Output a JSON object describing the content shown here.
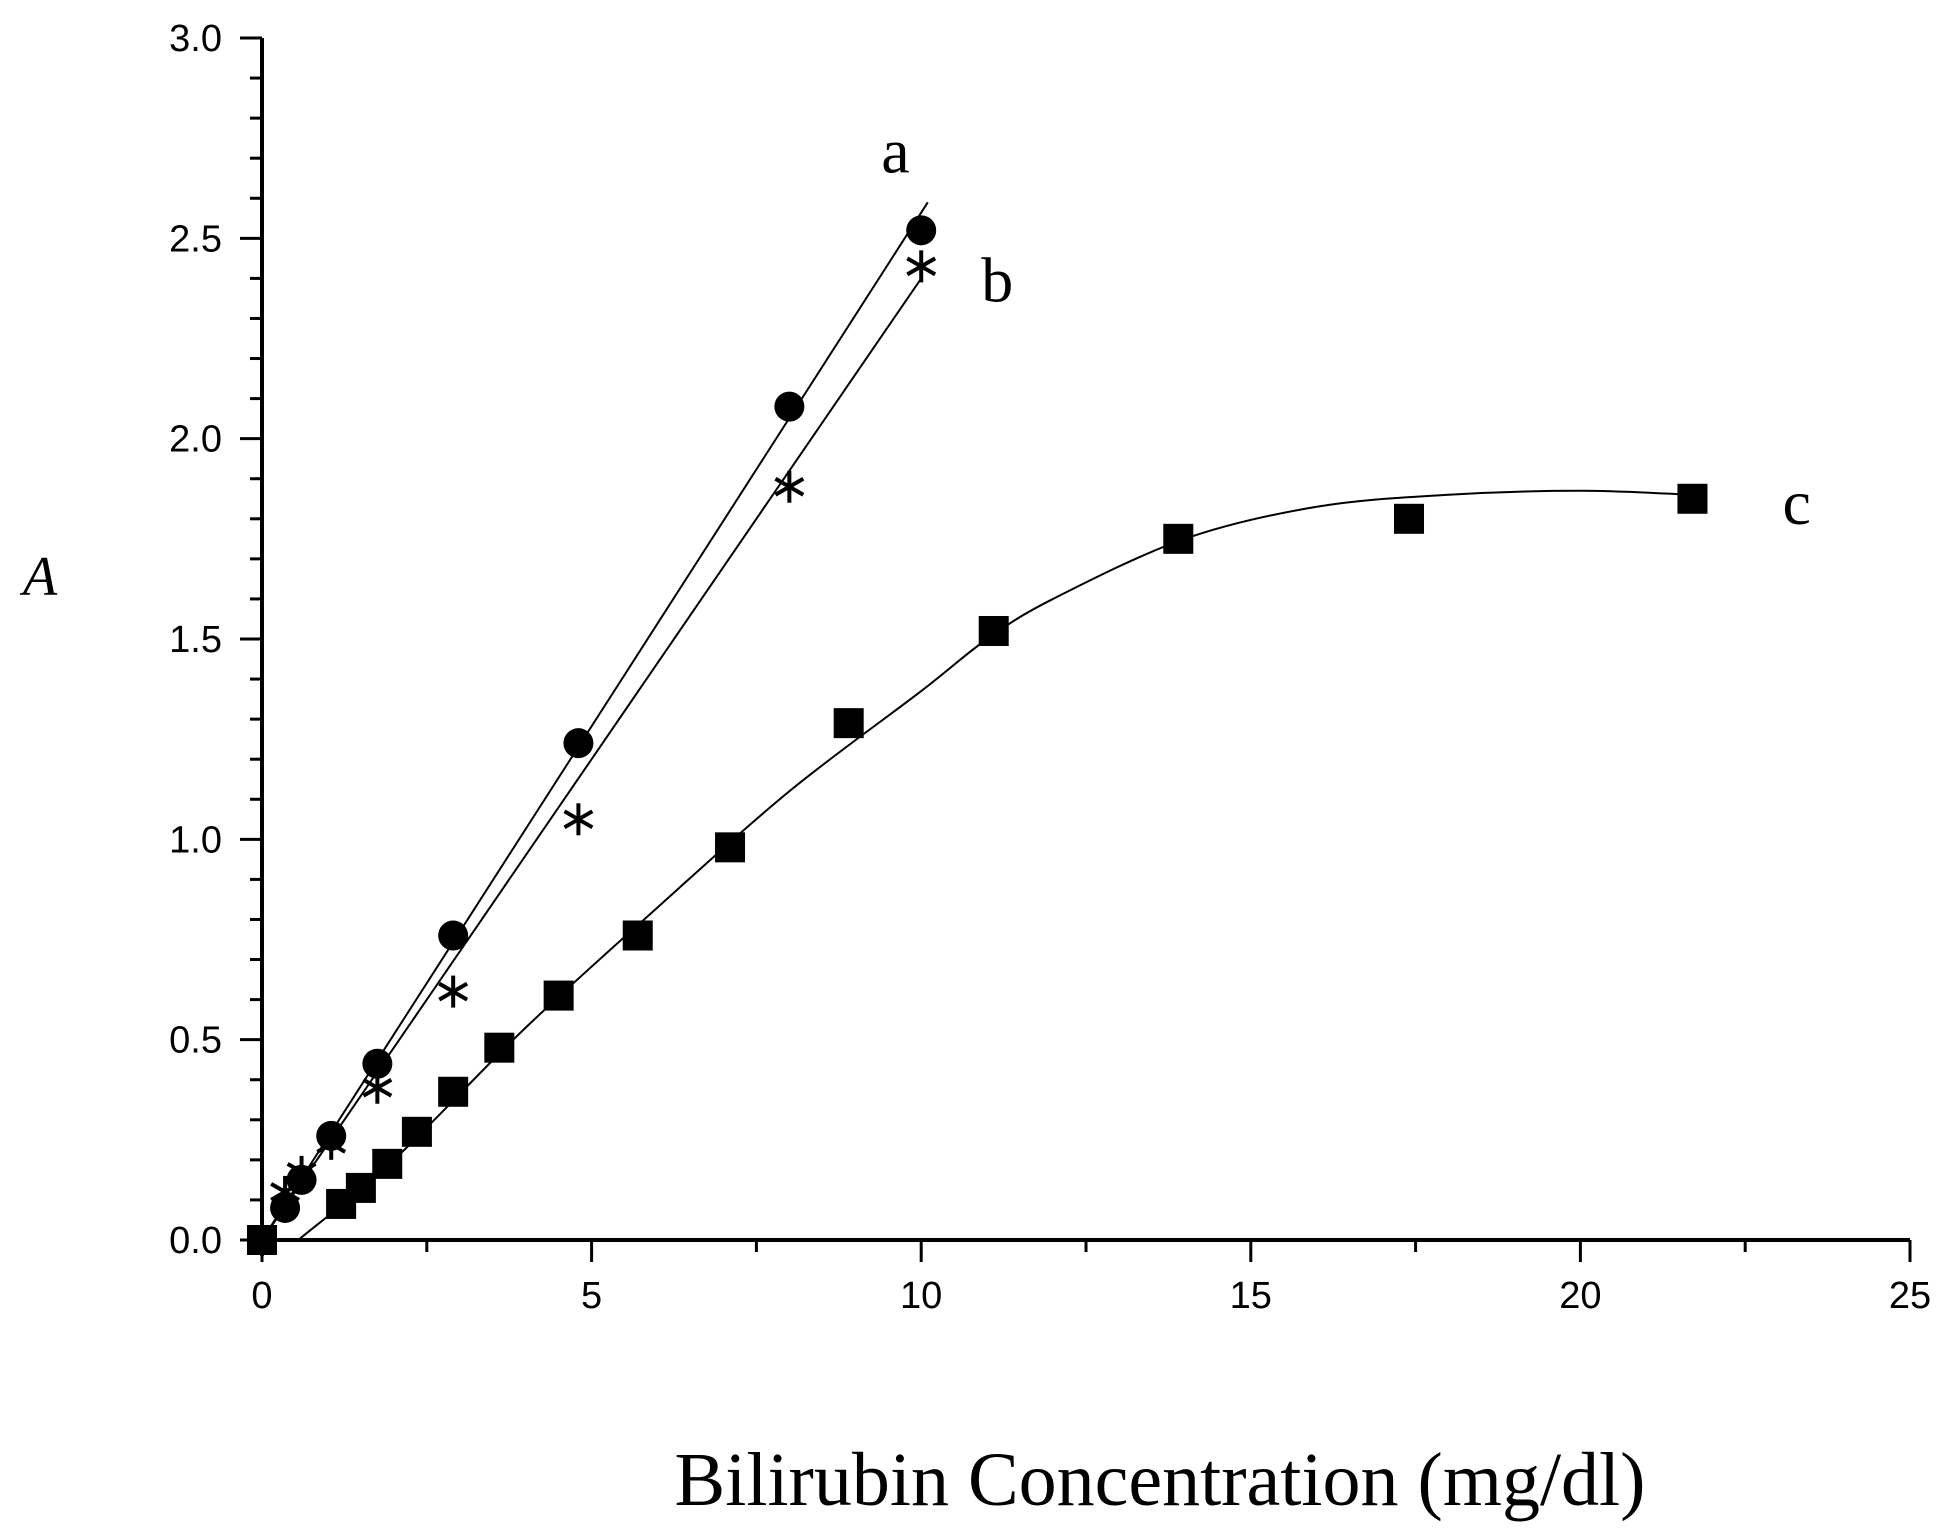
{
  "chart_data": {
    "type": "scatter",
    "title": "",
    "xlabel": "Bilirubin Concentration (mg/dl)",
    "ylabel": "A",
    "xlim": [
      0,
      25
    ],
    "ylim": [
      0,
      3.0
    ],
    "x_ticks": [
      0,
      5,
      10,
      15,
      20,
      25
    ],
    "y_ticks": [
      0.0,
      0.5,
      1.0,
      1.5,
      2.0,
      2.5,
      3.0
    ],
    "x_tick_labels": [
      "0",
      "5",
      "10",
      "15",
      "20",
      "25"
    ],
    "y_tick_labels": [
      "0.0",
      "0.5",
      "1.0",
      "1.5",
      "2.0",
      "2.5",
      "3.0"
    ],
    "grid": false,
    "series": [
      {
        "name": "a",
        "marker": "circle",
        "x": [
          0,
          0.35,
          0.6,
          1.05,
          1.75,
          2.9,
          4.8,
          8.0,
          10.0
        ],
        "y": [
          0.0,
          0.08,
          0.15,
          0.26,
          0.44,
          0.76,
          1.24,
          2.08,
          2.52
        ],
        "fit": {
          "kind": "linear",
          "x": [
            0.0,
            10.1
          ],
          "y": [
            0.0,
            2.59
          ]
        }
      },
      {
        "name": "b",
        "marker": "asterisk",
        "x": [
          0,
          0.35,
          0.6,
          1.05,
          1.75,
          2.9,
          4.8,
          8.0,
          10.0
        ],
        "y": [
          0.0,
          0.12,
          0.17,
          0.24,
          0.38,
          0.62,
          1.05,
          1.88,
          2.43
        ],
        "fit": {
          "kind": "linear",
          "x": [
            0.0,
            10.0
          ],
          "y": [
            0.0,
            2.4
          ]
        }
      },
      {
        "name": "c",
        "marker": "square",
        "x": [
          0,
          1.2,
          1.5,
          1.9,
          2.35,
          2.9,
          3.6,
          4.5,
          5.7,
          7.1,
          8.9,
          11.1,
          13.9,
          17.4,
          21.7
        ],
        "y": [
          0.0,
          0.09,
          0.13,
          0.19,
          0.27,
          0.37,
          0.48,
          0.61,
          0.76,
          0.98,
          1.29,
          1.52,
          1.75,
          1.8,
          1.85
        ],
        "fit": {
          "kind": "curve",
          "x": [
            0.55,
            2.0,
            4.0,
            6.0,
            8.0,
            10.0,
            11.0,
            12.0,
            14.0,
            16.0,
            18.0,
            20.0,
            21.7
          ],
          "y": [
            0.0,
            0.2,
            0.53,
            0.83,
            1.12,
            1.37,
            1.5,
            1.6,
            1.75,
            1.83,
            1.86,
            1.87,
            1.86
          ]
        }
      }
    ]
  }
}
